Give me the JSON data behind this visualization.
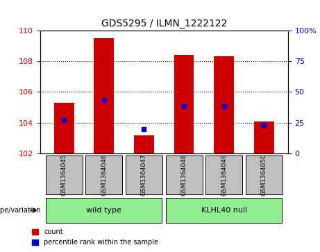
{
  "title": "GDS5295 / ILMN_1222122",
  "samples": [
    "GSM1364045",
    "GSM1364046",
    "GSM1364047",
    "GSM1364048",
    "GSM1364049",
    "GSM1364050"
  ],
  "groups": [
    "wild type",
    "wild type",
    "wild type",
    "KLHL40 null",
    "KLHL40 null",
    "KLHL40 null"
  ],
  "group_labels": [
    "wild type",
    "KLHL40 null"
  ],
  "group_colors": [
    "#90EE90",
    "#90EE90"
  ],
  "bar_bottom": 102,
  "count_values": [
    105.3,
    109.5,
    103.2,
    108.4,
    108.3,
    104.1
  ],
  "percentile_values": [
    104.2,
    105.5,
    103.6,
    105.1,
    105.1,
    103.85
  ],
  "ylim_left": [
    102,
    110
  ],
  "ylim_right": [
    0,
    100
  ],
  "yticks_left": [
    102,
    104,
    106,
    108,
    110
  ],
  "yticks_right": [
    0,
    25,
    50,
    75,
    100
  ],
  "ytick_labels_right": [
    "0",
    "25",
    "50",
    "75",
    "100%"
  ],
  "bar_color": "#CC0000",
  "percentile_color": "#0000CC",
  "bar_width": 0.5,
  "grid_color": "#000000",
  "sample_box_color": "#C0C0C0",
  "label_color_left": "#CC0000",
  "label_color_right": "#0000CC",
  "genotype_label": "genotype/variation",
  "legend_count": "count",
  "legend_percentile": "percentile rank within the sample"
}
